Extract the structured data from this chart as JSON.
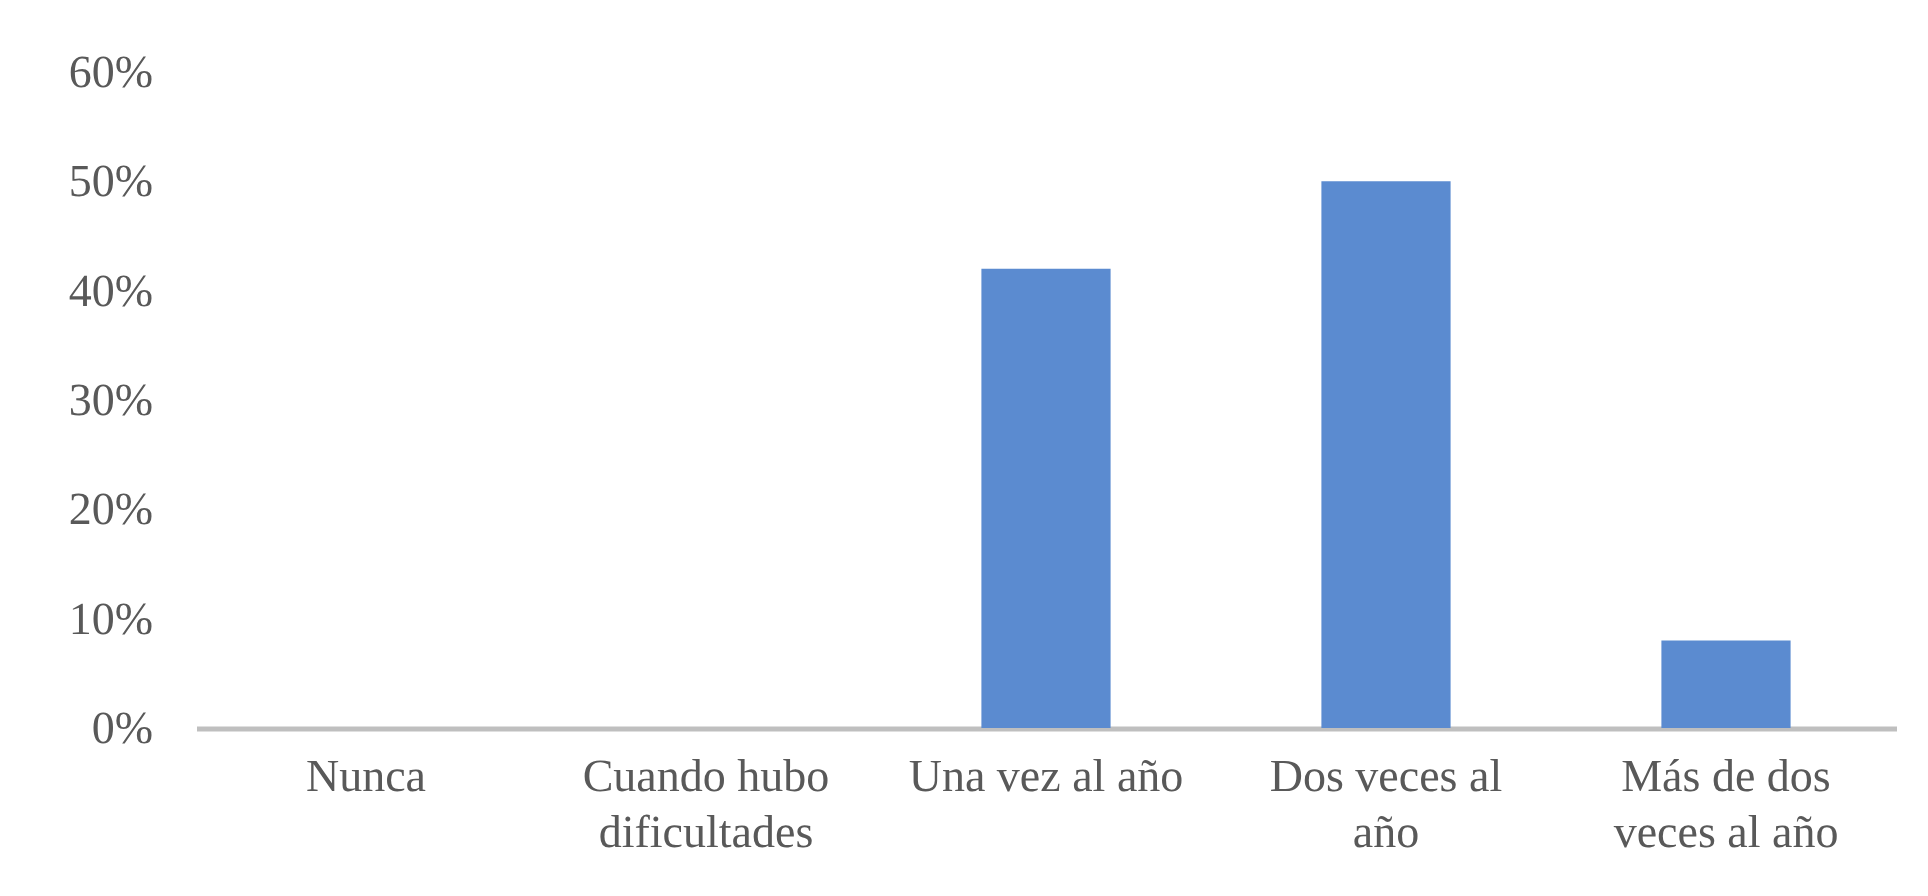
{
  "chart_data": {
    "type": "bar",
    "categories": [
      "Nunca",
      "Cuando hubo dificultades",
      "Una vez al año",
      "Dos veces al año",
      "Más de dos veces al año"
    ],
    "values": [
      0,
      0,
      42,
      50,
      8
    ],
    "color": "#5b8bd0",
    "ylim": [
      0,
      60
    ],
    "yticks": [
      {
        "value": 0,
        "label": "0%"
      },
      {
        "value": 10,
        "label": "10%"
      },
      {
        "value": 20,
        "label": "20%"
      },
      {
        "value": 30,
        "label": "30%"
      },
      {
        "value": 40,
        "label": "40%"
      },
      {
        "value": 50,
        "label": "50%"
      },
      {
        "value": 60,
        "label": "60%"
      }
    ]
  }
}
